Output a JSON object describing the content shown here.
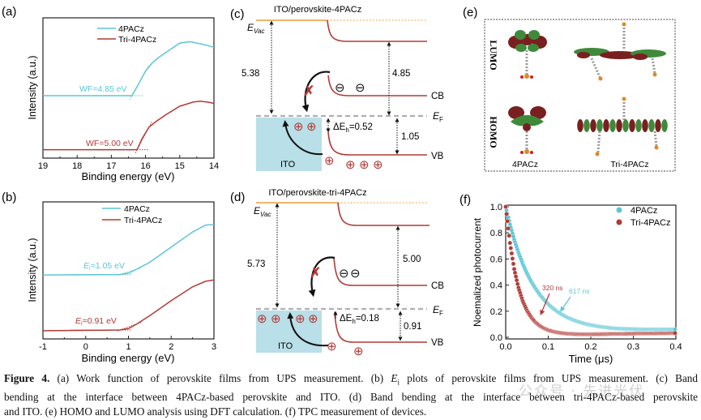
{
  "colors": {
    "cyan": "#5cc6d6",
    "red": "#b23a36",
    "orange": "#f4b468",
    "ito": "#b9dfe8",
    "fermi": "#b0b0b0"
  },
  "panel_labels": {
    "a": "(a)",
    "b": "(b)",
    "c": "(c)",
    "d": "(d)",
    "e": "(e)",
    "f": "(f)"
  },
  "chart_data": [
    {
      "panel": "a",
      "type": "line",
      "xlabel": "Binding energy (eV)",
      "ylabel": "Intensity (a.u.)",
      "xlim": [
        19,
        14
      ],
      "x_reversed": true,
      "xticks": [
        "19",
        "18",
        "17",
        "16",
        "15",
        "14"
      ],
      "legend_position": "top-center",
      "series": [
        {
          "name": "4PACz",
          "color": "#5cc6d6",
          "points": [
            [
              19,
              0.445
            ],
            [
              16.4,
              0.445
            ],
            [
              16.2,
              0.53
            ],
            [
              16.0,
              0.62
            ],
            [
              15.8,
              0.68
            ],
            [
              15.6,
              0.72
            ],
            [
              15.3,
              0.77
            ],
            [
              15.0,
              0.82
            ],
            [
              14.7,
              0.83
            ],
            [
              14.3,
              0.81
            ],
            [
              14,
              0.79
            ]
          ]
        },
        {
          "name": "Tri-4PACz",
          "color": "#b23a36",
          "points": [
            [
              19,
              0.06
            ],
            [
              16.25,
              0.06
            ],
            [
              16.1,
              0.14
            ],
            [
              15.9,
              0.22
            ],
            [
              15.7,
              0.26
            ],
            [
              15.4,
              0.31
            ],
            [
              15.0,
              0.37
            ],
            [
              14.6,
              0.4
            ],
            [
              14.4,
              0.405
            ],
            [
              14.2,
              0.4
            ],
            [
              14,
              0.39
            ]
          ]
        }
      ],
      "annotations": [
        {
          "text": "WF=4.85 eV",
          "series": "4PACz"
        },
        {
          "text": "WF=5.00 eV",
          "series": "Tri-4PACz"
        }
      ]
    },
    {
      "panel": "b",
      "type": "line",
      "xlabel": "Binding energy (eV)",
      "ylabel": "Intensity (a.u.)",
      "xlim": [
        -1,
        3
      ],
      "xticks": [
        "-1",
        "0",
        "1",
        "2",
        "3"
      ],
      "legend_position": "top-center",
      "series": [
        {
          "name": "4PACz",
          "color": "#5cc6d6",
          "points": [
            [
              -1,
              0.467
            ],
            [
              0.8,
              0.47
            ],
            [
              1.0,
              0.48
            ],
            [
              1.2,
              0.51
            ],
            [
              1.5,
              0.56
            ],
            [
              2.0,
              0.67
            ],
            [
              2.5,
              0.78
            ],
            [
              2.8,
              0.83
            ],
            [
              3,
              0.835
            ]
          ]
        },
        {
          "name": "Tri-4PACz",
          "color": "#b23a36",
          "points": [
            [
              -1,
              0.06
            ],
            [
              0.8,
              0.065
            ],
            [
              1.0,
              0.075
            ],
            [
              1.2,
              0.11
            ],
            [
              1.5,
              0.17
            ],
            [
              2.0,
              0.28
            ],
            [
              2.5,
              0.38
            ],
            [
              2.8,
              0.42
            ],
            [
              3,
              0.43
            ]
          ]
        }
      ],
      "annotations": [
        {
          "prefix": "E",
          "sub": "i",
          "text": "=1.05 eV",
          "series": "4PACz"
        },
        {
          "prefix": "E",
          "sub": "i",
          "text": "=0.91 eV",
          "series": "Tri-4PACz"
        }
      ]
    },
    {
      "panel": "f",
      "type": "scatter",
      "xlabel": "Time (μs)",
      "ylabel": "Noemalized photocurrent",
      "xlim": [
        0,
        0.4
      ],
      "ylim": [
        0,
        1.0
      ],
      "xticks": [
        "0.0",
        "0.1",
        "0.2",
        "0.3",
        "0.4"
      ],
      "yticks": [
        "0.0",
        "0.2",
        "0.4",
        "0.6",
        "0.8",
        "1.0"
      ],
      "legend_position": "top-right",
      "x": [
        0,
        0.01,
        0.02,
        0.03,
        0.04,
        0.05,
        0.06,
        0.07,
        0.08,
        0.09,
        0.1,
        0.11,
        0.12,
        0.13,
        0.14,
        0.15,
        0.16,
        0.17,
        0.18,
        0.19,
        0.2,
        0.21,
        0.22,
        0.23,
        0.24,
        0.25,
        0.26,
        0.27,
        0.28,
        0.29,
        0.3,
        0.31,
        0.32,
        0.33,
        0.34,
        0.35,
        0.36,
        0.37,
        0.38,
        0.39,
        0.4
      ],
      "series": [
        {
          "name": "4PACz",
          "color": "#5cc6d6",
          "values": [
            1.0,
            0.864,
            0.748,
            0.649,
            0.563,
            0.49,
            0.427,
            0.374,
            0.327,
            0.288,
            0.254,
            0.225,
            0.2,
            0.179,
            0.16,
            0.145,
            0.131,
            0.12,
            0.11,
            0.101,
            0.094,
            0.088,
            0.082,
            0.078,
            0.074,
            0.07,
            0.068,
            0.066,
            0.065,
            0.064,
            0.063,
            0.062,
            0.061,
            0.06,
            0.06,
            0.06,
            0.06,
            0.06,
            0.06,
            0.06,
            0.06
          ]
        },
        {
          "name": "Tri-4PACz",
          "color": "#b23a36",
          "values": [
            1.0,
            0.723,
            0.523,
            0.38,
            0.278,
            0.205,
            0.153,
            0.115,
            0.088,
            0.069,
            0.055,
            0.045,
            0.038,
            0.033,
            0.029,
            0.027,
            0.025,
            0.024,
            0.023,
            0.023,
            0.023,
            0.024,
            0.024,
            0.025,
            0.025,
            0.026,
            0.026,
            0.027,
            0.027,
            0.028,
            0.028,
            0.029,
            0.029,
            0.03,
            0.03,
            0.03,
            0.031,
            0.031,
            0.031,
            0.032,
            0.032
          ]
        }
      ],
      "annotations": [
        {
          "text": "320 ns",
          "series": "Tri-4PACz"
        },
        {
          "text": "617 ns",
          "series": "4PACz"
        }
      ]
    }
  ],
  "band_c": {
    "title": "ITO/perovskite-4PACz",
    "evac": "E",
    "evac_sub": "Vac",
    "ef": "E",
    "ef_sub": "F",
    "cb": "CB",
    "vb": "VB",
    "ito": "ITO",
    "left_gap": "5.38",
    "right_gap": "4.85",
    "vb_gap": "1.05",
    "dEh_prefix": "ΔE",
    "dEh_sub": "h",
    "dEh_value": "=0.52",
    "hole": "⊕",
    "electron": "⊖"
  },
  "band_d": {
    "title": "ITO/perovskite-tri-4PACz",
    "evac": "E",
    "evac_sub": "Vac",
    "ef": "E",
    "ef_sub": "F",
    "cb": "CB",
    "vb": "VB",
    "ito": "ITO",
    "left_gap": "5.73",
    "right_gap": "5.00",
    "vb_gap": "0.91",
    "dEh_prefix": "ΔE",
    "dEh_sub": "h",
    "dEh_value": "=0.18",
    "hole": "⊕",
    "electron": "⊖"
  },
  "orbitals": {
    "lumo": "LUMO",
    "homo": "HOMO",
    "mol1": "4PACz",
    "mol2": "Tri-4PACz"
  },
  "caption": {
    "figure": "Figure 4.",
    "l1a": " (a) Work function of perovskite films from UPS measurement. (b) ",
    "ei": "E",
    "ei_sub": "i",
    "l1b": " plots of perovskite films from UPS measurement. (c) Band",
    "l2": "bending at the interface between 4PACz-based perovskite and ITO. (d) Band bending at the interface between tri-4PACz-based perovskite",
    "l3": "and ITO. (e) HOMO and LUMO analysis using DFT calculation. (f) TPC measurement of devices."
  },
  "watermark": "公众号 · 先进光伏"
}
